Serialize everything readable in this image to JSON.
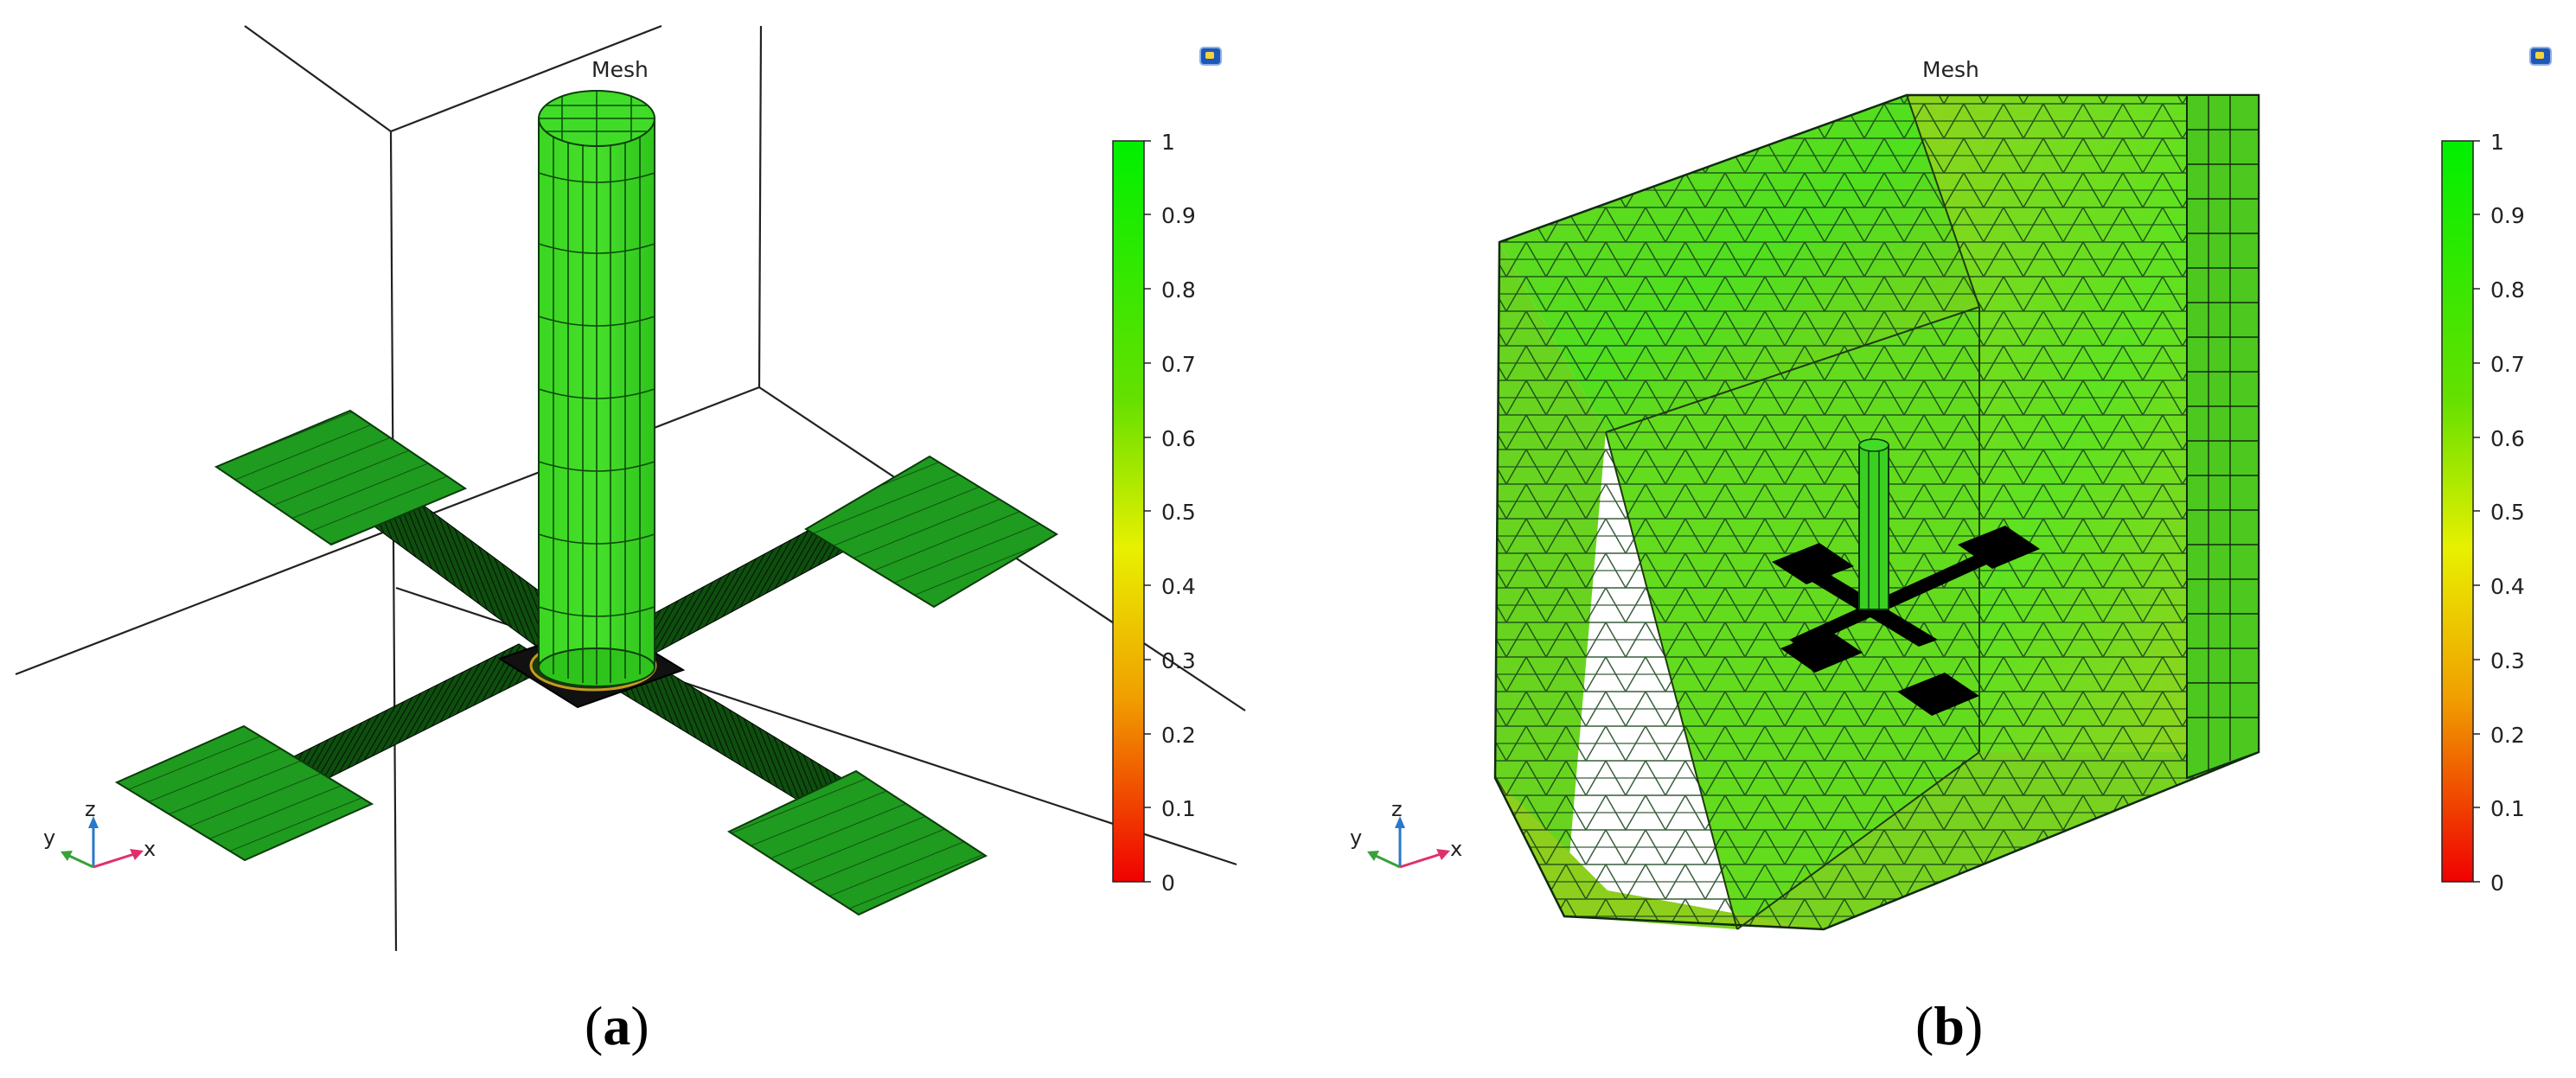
{
  "panels": [
    {
      "id": "a",
      "title": "Mesh",
      "caption_letter": "a"
    },
    {
      "id": "b",
      "title": "Mesh",
      "caption_letter": "b"
    }
  ],
  "colorbar": {
    "ticks": [
      "1",
      "0.9",
      "0.8",
      "0.7",
      "0.6",
      "0.5",
      "0.4",
      "0.3",
      "0.2",
      "0.1",
      "0"
    ],
    "colors": {
      "top": "#00f000",
      "mid": "#f0f000",
      "low": "#f08000",
      "bottom": "#f00000"
    }
  },
  "axes_triad": {
    "x": "x",
    "y": "y",
    "z": "z"
  },
  "colors": {
    "mesh_green": "#35d421",
    "dark_green": "#0f5a0f",
    "box_green": "#59cc22",
    "box_yellow": "#9fd01c",
    "black": "#000000"
  }
}
